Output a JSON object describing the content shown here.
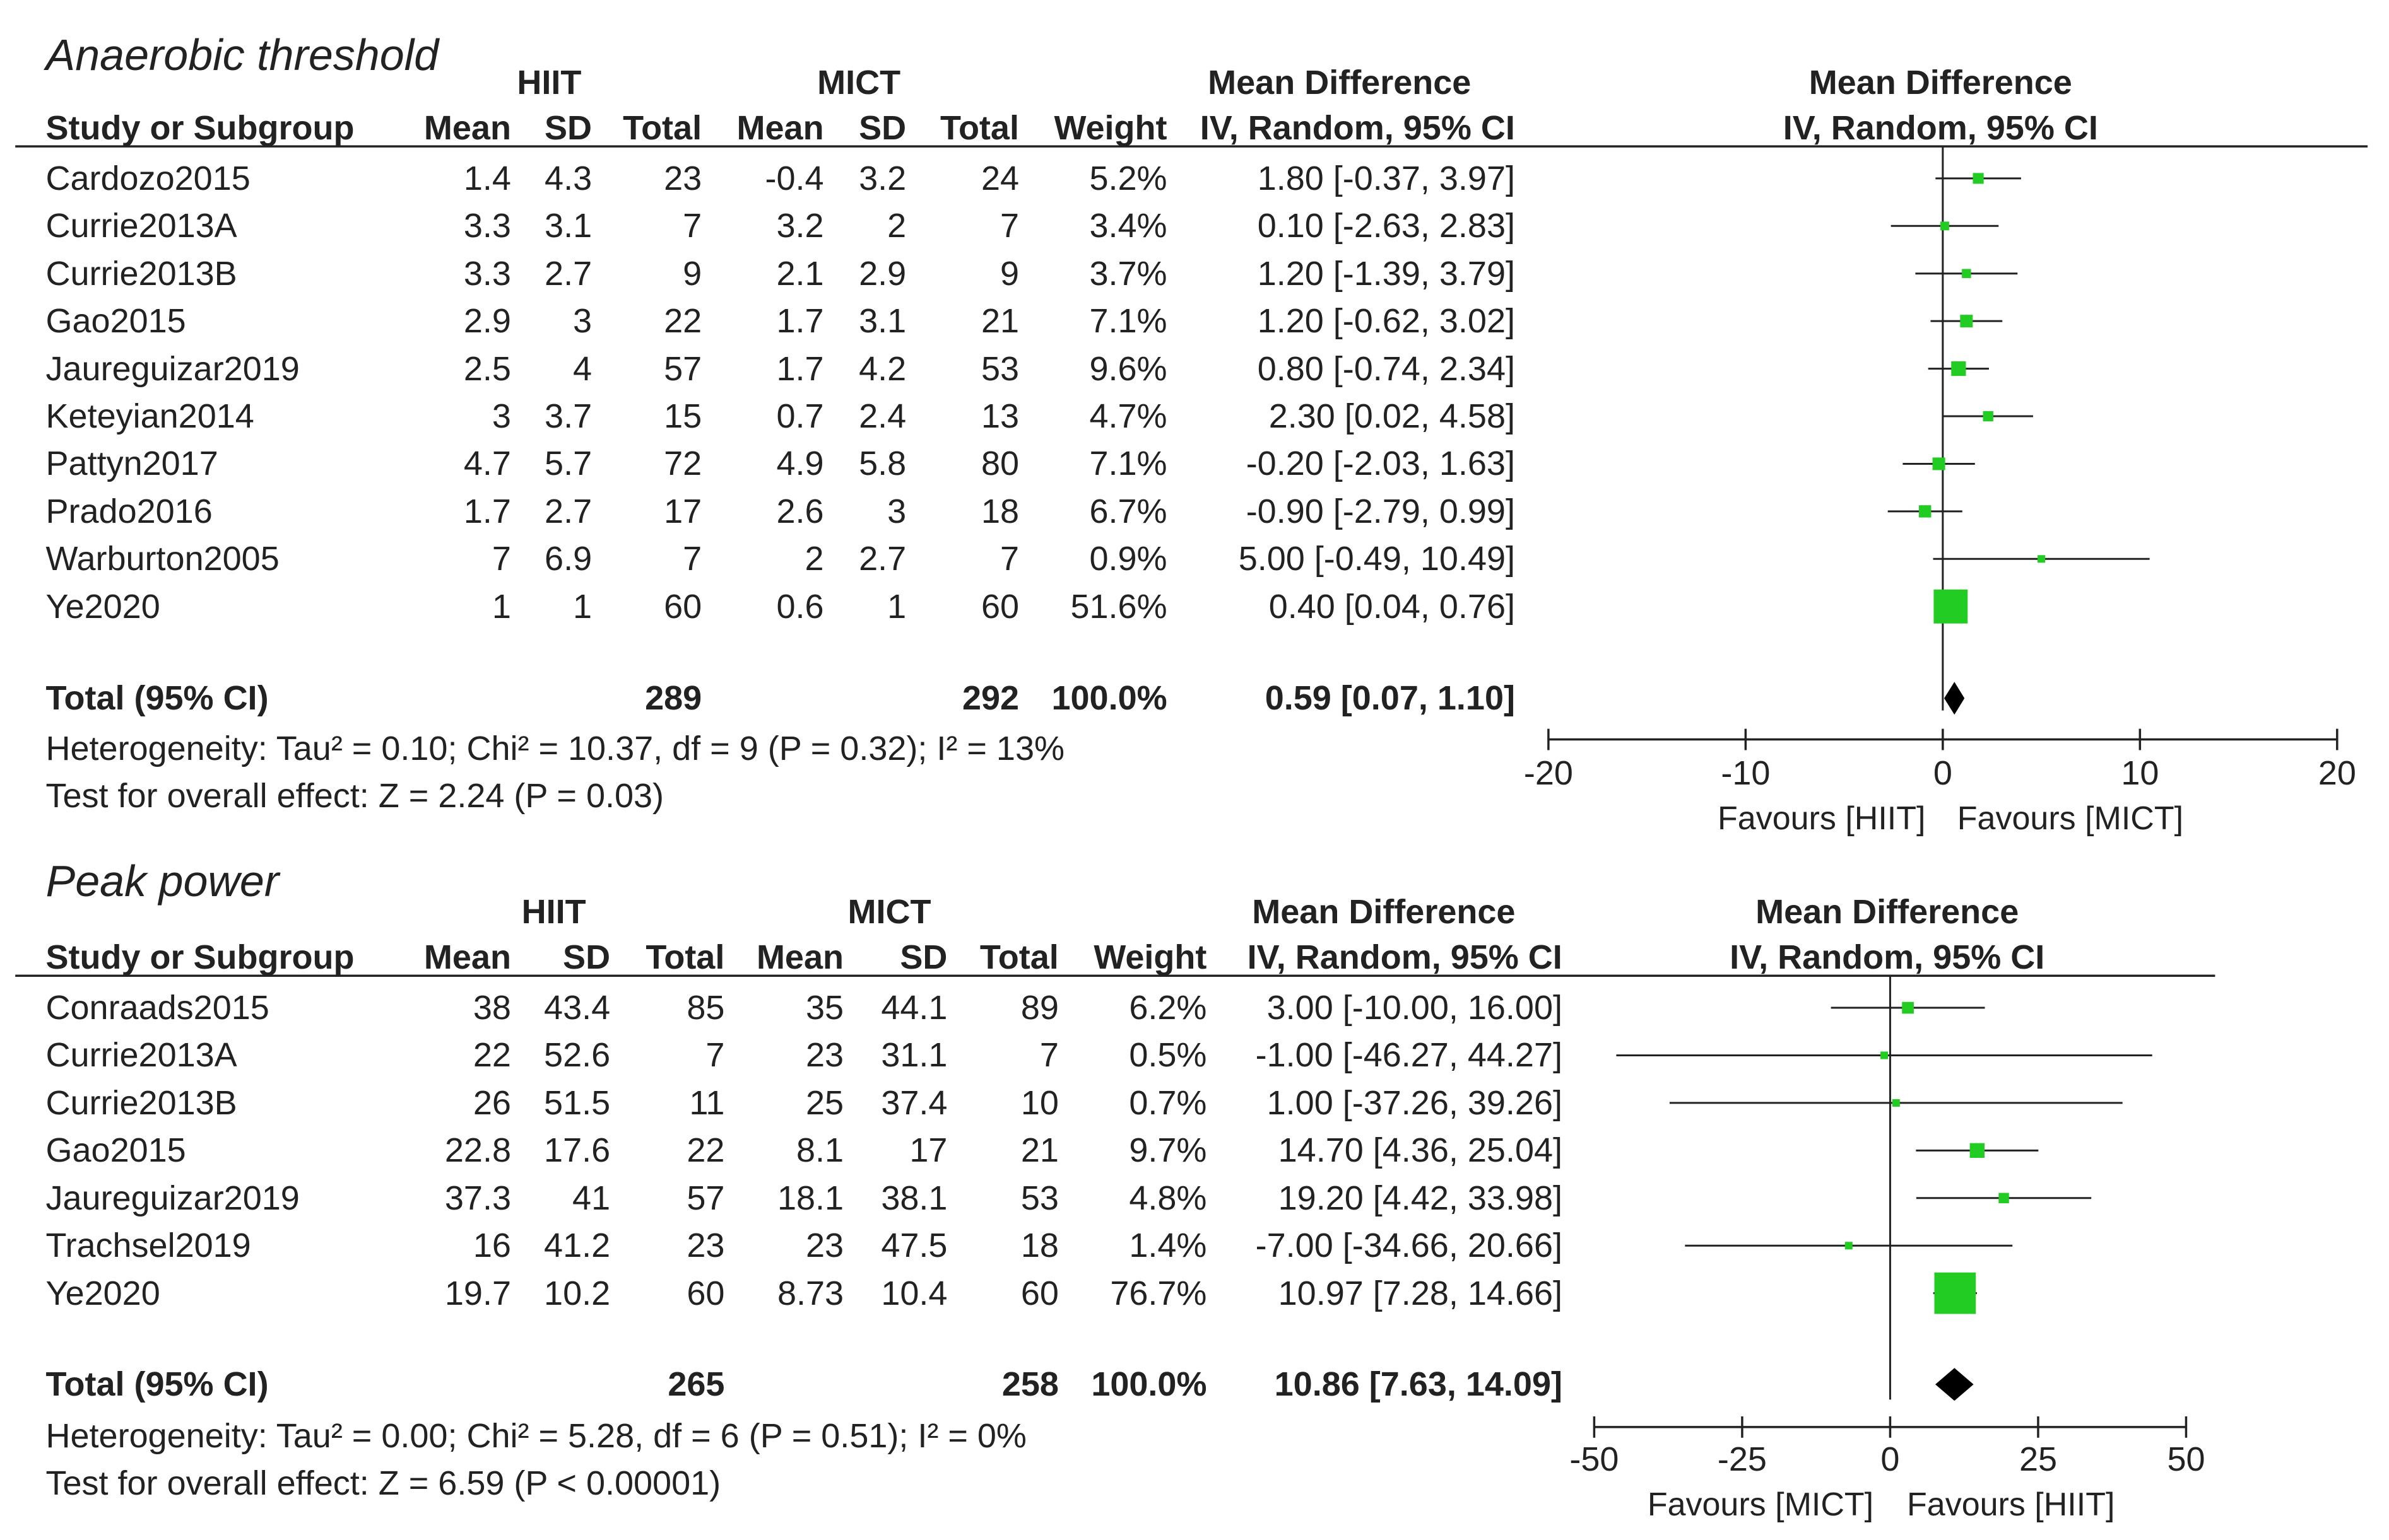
{
  "chart_data": [
    {
      "type": "forest",
      "title": "Anaerobic threshold",
      "group1": "HIIT",
      "group2": "MICT",
      "effect_header": "Mean Difference",
      "method": "IV, Random, 95% CI",
      "col_headers": [
        "Study or Subgroup",
        "Mean",
        "SD",
        "Total",
        "Mean",
        "SD",
        "Total",
        "Weight",
        "IV, Random, 95% CI"
      ],
      "studies": [
        {
          "name": "Cardozo2015",
          "m1": "1.4",
          "sd1": "4.3",
          "n1": "23",
          "m2": "-0.4",
          "sd2": "3.2",
          "n2": "24",
          "weight": "5.2%",
          "ci_text": "1.80 [-0.37, 3.97]",
          "md": 1.8,
          "lo": -0.37,
          "hi": 3.97,
          "w": 5.2
        },
        {
          "name": "Currie2013A",
          "m1": "3.3",
          "sd1": "3.1",
          "n1": "7",
          "m2": "3.2",
          "sd2": "2",
          "n2": "7",
          "weight": "3.4%",
          "ci_text": "0.10 [-2.63, 2.83]",
          "md": 0.1,
          "lo": -2.63,
          "hi": 2.83,
          "w": 3.4
        },
        {
          "name": "Currie2013B",
          "m1": "3.3",
          "sd1": "2.7",
          "n1": "9",
          "m2": "2.1",
          "sd2": "2.9",
          "n2": "9",
          "weight": "3.7%",
          "ci_text": "1.20 [-1.39, 3.79]",
          "md": 1.2,
          "lo": -1.39,
          "hi": 3.79,
          "w": 3.7
        },
        {
          "name": "Gao2015",
          "m1": "2.9",
          "sd1": "3",
          "n1": "22",
          "m2": "1.7",
          "sd2": "3.1",
          "n2": "21",
          "weight": "7.1%",
          "ci_text": "1.20 [-0.62, 3.02]",
          "md": 1.2,
          "lo": -0.62,
          "hi": 3.02,
          "w": 7.1
        },
        {
          "name": "Jaureguizar2019",
          "m1": "2.5",
          "sd1": "4",
          "n1": "57",
          "m2": "1.7",
          "sd2": "4.2",
          "n2": "53",
          "weight": "9.6%",
          "ci_text": "0.80 [-0.74, 2.34]",
          "md": 0.8,
          "lo": -0.74,
          "hi": 2.34,
          "w": 9.6
        },
        {
          "name": "Keteyian2014",
          "m1": "3",
          "sd1": "3.7",
          "n1": "15",
          "m2": "0.7",
          "sd2": "2.4",
          "n2": "13",
          "weight": "4.7%",
          "ci_text": "2.30 [0.02, 4.58]",
          "md": 2.3,
          "lo": 0.02,
          "hi": 4.58,
          "w": 4.7
        },
        {
          "name": "Pattyn2017",
          "m1": "4.7",
          "sd1": "5.7",
          "n1": "72",
          "m2": "4.9",
          "sd2": "5.8",
          "n2": "80",
          "weight": "7.1%",
          "ci_text": "-0.20 [-2.03, 1.63]",
          "md": -0.2,
          "lo": -2.03,
          "hi": 1.63,
          "w": 7.1
        },
        {
          "name": "Prado2016",
          "m1": "1.7",
          "sd1": "2.7",
          "n1": "17",
          "m2": "2.6",
          "sd2": "3",
          "n2": "18",
          "weight": "6.7%",
          "ci_text": "-0.90 [-2.79, 0.99]",
          "md": -0.9,
          "lo": -2.79,
          "hi": 0.99,
          "w": 6.7
        },
        {
          "name": "Warburton2005",
          "m1": "7",
          "sd1": "6.9",
          "n1": "7",
          "m2": "2",
          "sd2": "2.7",
          "n2": "7",
          "weight": "0.9%",
          "ci_text": "5.00 [-0.49, 10.49]",
          "md": 5.0,
          "lo": -0.49,
          "hi": 10.49,
          "w": 0.9
        },
        {
          "name": "Ye2020",
          "m1": "1",
          "sd1": "1",
          "n1": "60",
          "m2": "0.6",
          "sd2": "1",
          "n2": "60",
          "weight": "51.6%",
          "ci_text": "0.40 [0.04, 0.76]",
          "md": 0.4,
          "lo": 0.04,
          "hi": 0.76,
          "w": 51.6
        }
      ],
      "total": {
        "label": "Total (95% CI)",
        "n1": "289",
        "n2": "292",
        "weight": "100.0%",
        "ci_text": "0.59 [0.07, 1.10]",
        "md": 0.59,
        "lo": 0.07,
        "hi": 1.1
      },
      "heterogeneity": "Heterogeneity: Tau² = 0.10; Chi² = 10.37, df = 9 (P = 0.32); I² = 13%",
      "overall_effect": "Test for overall effect: Z = 2.24 (P = 0.03)",
      "xlim": [
        -20,
        20
      ],
      "ticks": [
        -20,
        -10,
        0,
        10,
        20
      ],
      "tick_labels": [
        "-20",
        "-10",
        "0",
        "10",
        "20"
      ],
      "favours_left": "Favours [HIIT]",
      "favours_right": "Favours [MICT]"
    },
    {
      "type": "forest",
      "title": "Peak power",
      "group1": "HIIT",
      "group2": "MICT",
      "effect_header": "Mean Difference",
      "method": "IV, Random, 95% CI",
      "col_headers": [
        "Study or Subgroup",
        "Mean",
        "SD",
        "Total",
        "Mean",
        "SD",
        "Total",
        "Weight",
        "IV, Random, 95% CI"
      ],
      "studies": [
        {
          "name": "Conraads2015",
          "m1": "38",
          "sd1": "43.4",
          "n1": "85",
          "m2": "35",
          "sd2": "44.1",
          "n2": "89",
          "weight": "6.2%",
          "ci_text": "3.00 [-10.00, 16.00]",
          "md": 3.0,
          "lo": -10.0,
          "hi": 16.0,
          "w": 6.2
        },
        {
          "name": "Currie2013A",
          "m1": "22",
          "sd1": "52.6",
          "n1": "7",
          "m2": "23",
          "sd2": "31.1",
          "n2": "7",
          "weight": "0.5%",
          "ci_text": "-1.00 [-46.27, 44.27]",
          "md": -1.0,
          "lo": -46.27,
          "hi": 44.27,
          "w": 0.5
        },
        {
          "name": "Currie2013B",
          "m1": "26",
          "sd1": "51.5",
          "n1": "11",
          "m2": "25",
          "sd2": "37.4",
          "n2": "10",
          "weight": "0.7%",
          "ci_text": "1.00 [-37.26, 39.26]",
          "md": 1.0,
          "lo": -37.26,
          "hi": 39.26,
          "w": 0.7
        },
        {
          "name": "Gao2015",
          "m1": "22.8",
          "sd1": "17.6",
          "n1": "22",
          "m2": "8.1",
          "sd2": "17",
          "n2": "21",
          "weight": "9.7%",
          "ci_text": "14.70 [4.36, 25.04]",
          "md": 14.7,
          "lo": 4.36,
          "hi": 25.04,
          "w": 9.7
        },
        {
          "name": "Jaureguizar2019",
          "m1": "37.3",
          "sd1": "41",
          "n1": "57",
          "m2": "18.1",
          "sd2": "38.1",
          "n2": "53",
          "weight": "4.8%",
          "ci_text": "19.20 [4.42, 33.98]",
          "md": 19.2,
          "lo": 4.42,
          "hi": 33.98,
          "w": 4.8
        },
        {
          "name": "Trachsel2019",
          "m1": "16",
          "sd1": "41.2",
          "n1": "23",
          "m2": "23",
          "sd2": "47.5",
          "n2": "18",
          "weight": "1.4%",
          "ci_text": "-7.00 [-34.66, 20.66]",
          "md": -7.0,
          "lo": -34.66,
          "hi": 20.66,
          "w": 1.4
        },
        {
          "name": "Ye2020",
          "m1": "19.7",
          "sd1": "10.2",
          "n1": "60",
          "m2": "8.73",
          "sd2": "10.4",
          "n2": "60",
          "weight": "76.7%",
          "ci_text": "10.97 [7.28, 14.66]",
          "md": 10.97,
          "lo": 7.28,
          "hi": 14.66,
          "w": 76.7
        }
      ],
      "total": {
        "label": "Total (95% CI)",
        "n1": "265",
        "n2": "258",
        "weight": "100.0%",
        "ci_text": "10.86 [7.63, 14.09]",
        "md": 10.86,
        "lo": 7.63,
        "hi": 14.09
      },
      "heterogeneity": "Heterogeneity: Tau² = 0.00; Chi² = 5.28, df = 6 (P = 0.51); I² = 0%",
      "overall_effect": "Test for overall effect: Z = 6.59 (P < 0.00001)",
      "xlim": [
        -50,
        50
      ],
      "ticks": [
        -50,
        -25,
        0,
        25,
        50
      ],
      "tick_labels": [
        "-50",
        "-25",
        "0",
        "25",
        "50"
      ],
      "favours_left": "Favours [MICT]",
      "favours_right": "Favours [HIIT]"
    }
  ],
  "colors": {
    "marker": "#22cc22",
    "line": "#222222",
    "text": "#222222"
  }
}
